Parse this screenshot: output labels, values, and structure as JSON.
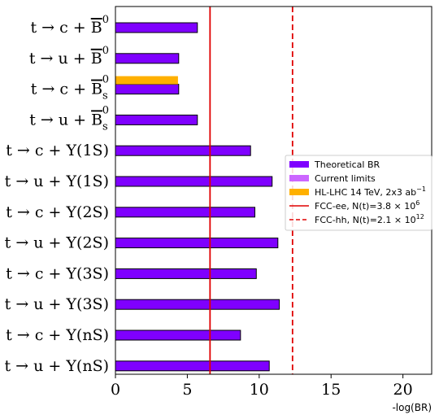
{
  "chart_data": {
    "type": "bar",
    "orientation": "horizontal",
    "xlabel": "-log(BR)",
    "xlim": [
      0,
      22
    ],
    "xticks": [
      0,
      5,
      10,
      15,
      20
    ],
    "categories": [
      {
        "lead": "t → c + ",
        "particle": "B",
        "bar": true,
        "sup": "0",
        "sub": "",
        "tail": ""
      },
      {
        "lead": "t → u + ",
        "particle": "B",
        "bar": true,
        "sup": "0",
        "sub": "",
        "tail": ""
      },
      {
        "lead": "t → c + ",
        "particle": "B",
        "bar": true,
        "sup": "0",
        "sub": "s",
        "tail": ""
      },
      {
        "lead": "t → u + ",
        "particle": "B",
        "bar": true,
        "sup": "0",
        "sub": "s",
        "tail": ""
      },
      {
        "lead": "t → c + ",
        "particle": "Υ(1S)",
        "bar": false,
        "sup": "",
        "sub": "",
        "tail": ""
      },
      {
        "lead": "t → u + ",
        "particle": "Υ(1S)",
        "bar": false,
        "sup": "",
        "sub": "",
        "tail": ""
      },
      {
        "lead": "t → c + ",
        "particle": "Υ(2S)",
        "bar": false,
        "sup": "",
        "sub": "",
        "tail": ""
      },
      {
        "lead": "t → u + ",
        "particle": "Υ(2S)",
        "bar": false,
        "sup": "",
        "sub": "",
        "tail": ""
      },
      {
        "lead": "t → c + ",
        "particle": "Υ(3S)",
        "bar": false,
        "sup": "",
        "sub": "",
        "tail": ""
      },
      {
        "lead": "t → u + ",
        "particle": "Υ(3S)",
        "bar": false,
        "sup": "",
        "sub": "",
        "tail": ""
      },
      {
        "lead": "t → c + ",
        "particle": "Υ(nS)",
        "bar": false,
        "sup": "",
        "sub": "",
        "tail": ""
      },
      {
        "lead": "t → u + ",
        "particle": "Υ(nS)",
        "bar": false,
        "sup": "",
        "sub": "",
        "tail": ""
      }
    ],
    "series": [
      {
        "name": "Theoretical BR",
        "color": "#7f00ff",
        "values": [
          5.7,
          4.4,
          4.4,
          5.7,
          9.4,
          10.9,
          9.7,
          11.3,
          9.8,
          11.4,
          8.7,
          10.7
        ]
      },
      {
        "name": "Current limits",
        "color": "#cc66ff",
        "values": [
          null,
          null,
          null,
          null,
          null,
          null,
          null,
          null,
          null,
          null,
          null,
          null
        ]
      },
      {
        "name": "HL-LHC 14 TeV, 2x3 ab",
        "name_sup": "−1",
        "color": "#ffb000",
        "values": [
          null,
          null,
          4.35,
          null,
          null,
          null,
          null,
          null,
          null,
          null,
          null,
          null
        ]
      }
    ],
    "reference_lines": [
      {
        "name": "FCC-ee, N(t)=3.8 × 10",
        "name_sup": "6",
        "x": 6.58,
        "color": "#e00000",
        "style": "solid"
      },
      {
        "name": "FCC-hh, N(t)=2.1 × 10",
        "name_sup": "12",
        "x": 12.32,
        "color": "#e00000",
        "style": "dashed"
      }
    ],
    "legend_position": "center-right",
    "grid": false
  }
}
